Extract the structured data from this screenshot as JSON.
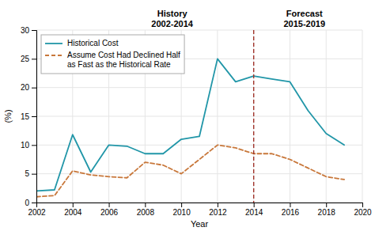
{
  "chart_data": {
    "type": "line",
    "x": [
      2002,
      2003,
      2004,
      2005,
      2006,
      2007,
      2008,
      2009,
      2010,
      2011,
      2012,
      2013,
      2014,
      2015,
      2016,
      2017,
      2018,
      2019
    ],
    "series": [
      {
        "name": "Historical Cost",
        "color": "#2196a8",
        "line_style": "solid",
        "values": [
          2.0,
          2.2,
          11.8,
          5.3,
          10.0,
          9.8,
          8.5,
          8.5,
          11.0,
          11.5,
          25.0,
          21.0,
          22.0,
          null,
          null,
          null,
          null,
          null
        ]
      },
      {
        "color": "#2196a8",
        "line_style": "solid",
        "values": [
          null,
          null,
          null,
          null,
          null,
          null,
          null,
          null,
          null,
          null,
          null,
          null,
          22.0,
          21.5,
          21.0,
          16.0,
          12.0,
          10.0
        ]
      },
      {
        "name": "Assume Cost Had Declined Half\nas Fast as the Historical Rate",
        "color": "#c8773a",
        "line_style": "dashed",
        "values": [
          1.0,
          1.2,
          5.5,
          4.8,
          4.5,
          4.3,
          7.0,
          6.5,
          5.0,
          7.5,
          10.0,
          9.5,
          8.5,
          8.5,
          7.5,
          6.0,
          4.5,
          4.0
        ]
      }
    ],
    "reference_lines": [
      {
        "x": 2014,
        "color": "#a0332a",
        "line_style": "dashed"
      }
    ],
    "annotations": [
      {
        "text": "History\n2002-2014",
        "x": 2009.5,
        "y": 30
      },
      {
        "text": "Forecast\n2015-2019",
        "x": 2016.8,
        "y": 30
      }
    ],
    "xlim": [
      2002,
      2020
    ],
    "ylim": [
      0,
      30
    ],
    "xticks": [
      2002,
      2004,
      2006,
      2008,
      2010,
      2012,
      2014,
      2016,
      2018,
      2020
    ],
    "yticks": [
      0,
      5,
      10,
      15,
      20,
      25,
      30
    ],
    "xlabel": "Year",
    "ylabel": "(%)",
    "grid": true,
    "legend": "upper-left"
  }
}
